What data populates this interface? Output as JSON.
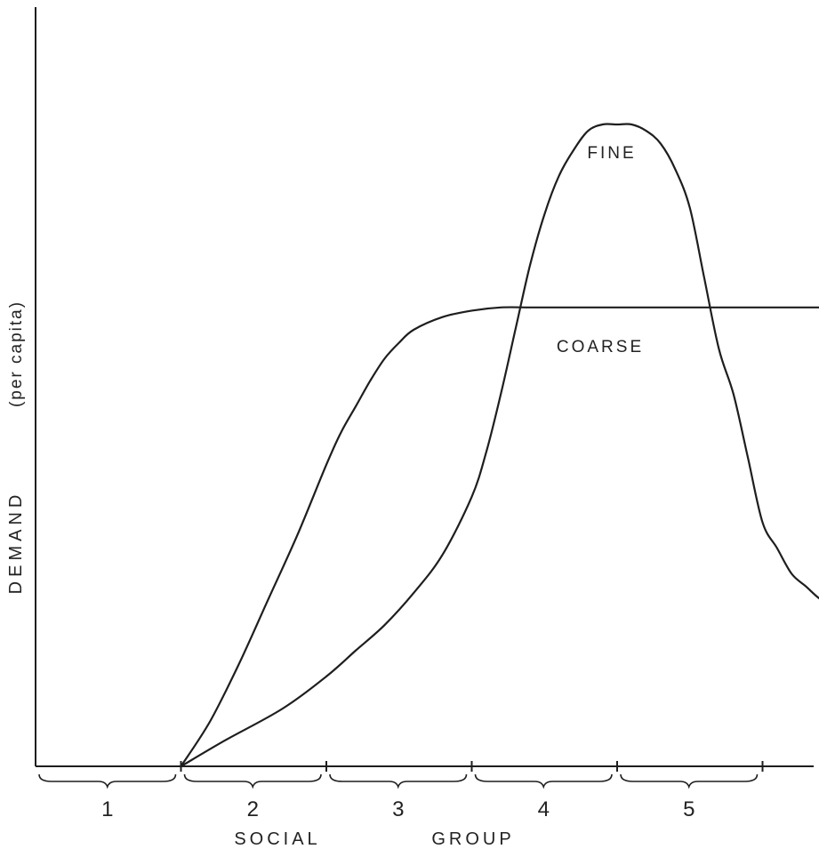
{
  "chart_data": {
    "type": "line",
    "title": "",
    "xlabel": "SOCIAL GROUP",
    "xlabel_words": [
      "SOCIAL",
      "GROUP"
    ],
    "ylabel": "DEMAND (per capita)",
    "ylabel_main": "DEMAND",
    "ylabel_sub": "(per capita)",
    "xlim": [
      0,
      5.55
    ],
    "ylim": [
      0,
      1
    ],
    "grid": false,
    "legend": "none",
    "categories": [
      "1",
      "2",
      "3",
      "4",
      "5"
    ],
    "series": [
      {
        "name": "FINE",
        "x": [
          1.0,
          1.3,
          1.7,
          2.0,
          2.2,
          2.4,
          2.6,
          2.8,
          3.0,
          3.1,
          3.2,
          3.3,
          3.4,
          3.5,
          3.6,
          3.7,
          3.8,
          3.9,
          4.0,
          4.1,
          4.2,
          4.3,
          4.4,
          4.5,
          4.6,
          4.7,
          4.8,
          4.9,
          5.0,
          5.1,
          5.2,
          5.3,
          5.4,
          5.5
        ],
        "y": [
          0.0,
          0.04,
          0.09,
          0.14,
          0.18,
          0.22,
          0.27,
          0.33,
          0.42,
          0.49,
          0.58,
          0.68,
          0.78,
          0.86,
          0.92,
          0.96,
          0.99,
          1.0,
          1.0,
          1.0,
          0.99,
          0.97,
          0.93,
          0.87,
          0.76,
          0.65,
          0.58,
          0.48,
          0.38,
          0.34,
          0.3,
          0.28,
          0.26,
          0.25
        ]
      },
      {
        "name": "COARSE",
        "x": [
          1.0,
          1.2,
          1.4,
          1.6,
          1.8,
          2.0,
          2.1,
          2.2,
          2.3,
          2.4,
          2.5,
          2.6,
          2.8,
          3.0,
          3.2,
          3.4,
          3.6,
          3.8,
          4.0,
          4.4,
          4.8,
          5.2,
          5.5
        ],
        "y": [
          0.0,
          0.07,
          0.16,
          0.26,
          0.36,
          0.47,
          0.52,
          0.56,
          0.6,
          0.635,
          0.66,
          0.68,
          0.7,
          0.71,
          0.715,
          0.715,
          0.715,
          0.715,
          0.715,
          0.715,
          0.715,
          0.715,
          0.715
        ]
      }
    ]
  }
}
